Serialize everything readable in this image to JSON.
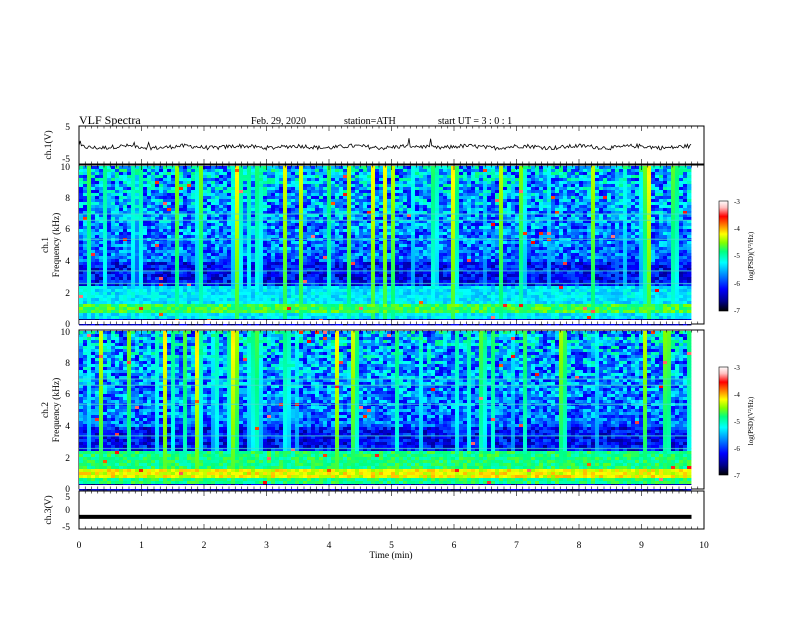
{
  "header": {
    "title": "VLF  Spectra",
    "date": "Feb. 29, 2020",
    "station": "station=ATH",
    "start": "start  UT  =    3  : 0   : 1"
  },
  "colors": {
    "colormap": [
      "#000000",
      "#00008b",
      "#0000ff",
      "#0080ff",
      "#00ffff",
      "#00ff80",
      "#80ff00",
      "#ffff00",
      "#ff8000",
      "#ff0000",
      "#ffc0c0",
      "#ffffff"
    ]
  },
  "chart_data": [
    {
      "type": "line",
      "ylabel": "ch.1(V)",
      "ylim": [
        -5,
        5
      ],
      "yticks": [
        "5",
        "-5"
      ],
      "xlim": [
        0,
        10
      ],
      "series": [
        {
          "x": [
            0,
            9.8
          ],
          "y": [
            -0.5,
            -0.5
          ]
        }
      ]
    },
    {
      "type": "heatmap",
      "ylabel_line1": "ch.1",
      "ylabel_line2": "Frequency  (kHz)",
      "ylim": [
        0,
        10
      ],
      "yticks": [
        "0",
        "2",
        "4",
        "6",
        "8",
        "10"
      ],
      "xlim": [
        0,
        9.8
      ],
      "colorbar": {
        "label": "log(PSD)(V²/Hz)",
        "ticks": [
          "-3",
          "-4",
          "-5",
          "-6",
          "-7"
        ],
        "range": [
          -7,
          -3
        ]
      }
    },
    {
      "type": "heatmap",
      "ylabel_line1": "ch.2",
      "ylabel_line2": "Frequency  (kHz)",
      "ylim": [
        0,
        10
      ],
      "yticks": [
        "0",
        "2",
        "4",
        "6",
        "8",
        "10"
      ],
      "xlim": [
        0,
        9.8
      ],
      "colorbar": {
        "label": "log(PSD)(V²/Hz)",
        "ticks": [
          "-3",
          "-4",
          "-5",
          "-6",
          "-7"
        ],
        "range": [
          -7,
          -3
        ]
      }
    },
    {
      "type": "line",
      "ylabel": "ch.3(V)",
      "ylim": [
        -5,
        5
      ],
      "yticks": [
        "5",
        "0",
        "-5"
      ],
      "xlim": [
        0,
        10
      ],
      "xlabel": "Time  (min)",
      "xticks": [
        "0",
        "1",
        "2",
        "3",
        "4",
        "5",
        "6",
        "7",
        "8",
        "9",
        "10"
      ],
      "series": [
        {
          "x": [
            0,
            9.8
          ],
          "y": [
            -1.8,
            -1.8
          ]
        }
      ]
    }
  ]
}
